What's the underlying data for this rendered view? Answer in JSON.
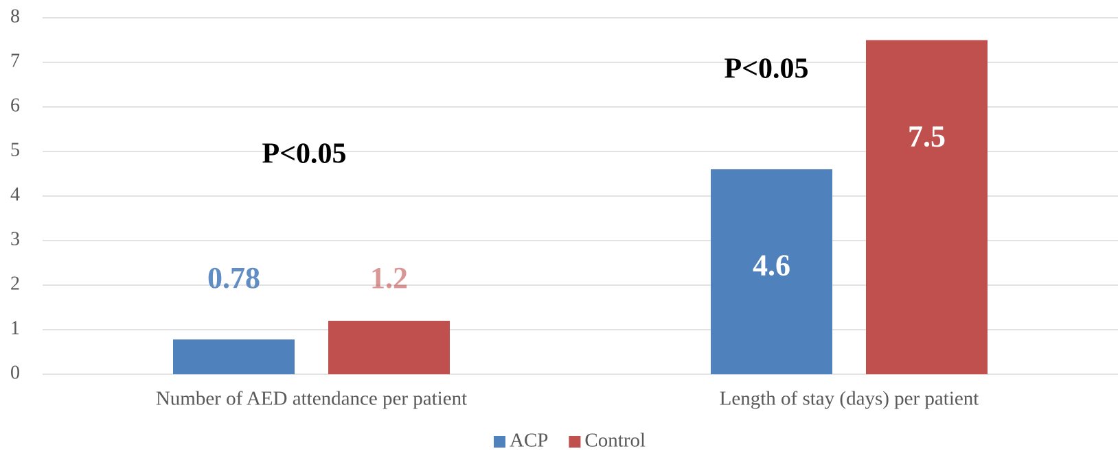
{
  "chart_data": {
    "type": "bar",
    "categories": [
      "Number of AED attendance per patient",
      "Length of stay (days) per patient"
    ],
    "series": [
      {
        "name": "ACP",
        "color": "#4f81bd",
        "values": [
          0.78,
          4.6
        ]
      },
      {
        "name": "Control",
        "color": "#c0504d",
        "values": [
          1.2,
          7.5
        ]
      }
    ],
    "annotations": [
      "P<0.05",
      "P<0.05"
    ],
    "ylim": [
      0,
      8
    ],
    "yticks": [
      0,
      1,
      2,
      3,
      4,
      5,
      6,
      7,
      8
    ],
    "grid": true,
    "legend": "bottom"
  }
}
